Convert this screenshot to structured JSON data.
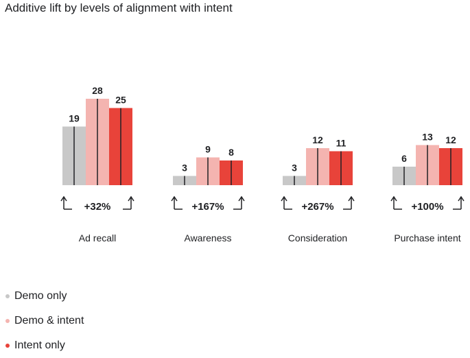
{
  "chart_data": {
    "type": "bar",
    "title": "Additive lift by levels of alignment with intent",
    "categories": [
      "Ad recall",
      "Awareness",
      "Consideration",
      "Purchase intent"
    ],
    "series": [
      {
        "name": "Demo only",
        "color": "#c8c8c8",
        "values": [
          19,
          3,
          3,
          6
        ]
      },
      {
        "name": "Demo & intent",
        "color": "#f4b4b0",
        "values": [
          28,
          9,
          12,
          13
        ]
      },
      {
        "name": "Intent only",
        "color": "#e8433a",
        "values": [
          25,
          8,
          11,
          12
        ]
      }
    ],
    "lift_labels": [
      "+32%",
      "+167%",
      "+267%",
      "+100%"
    ],
    "ylim": [
      0,
      30
    ],
    "xlabel": "",
    "ylabel": "",
    "legend_position": "bottom-left"
  }
}
